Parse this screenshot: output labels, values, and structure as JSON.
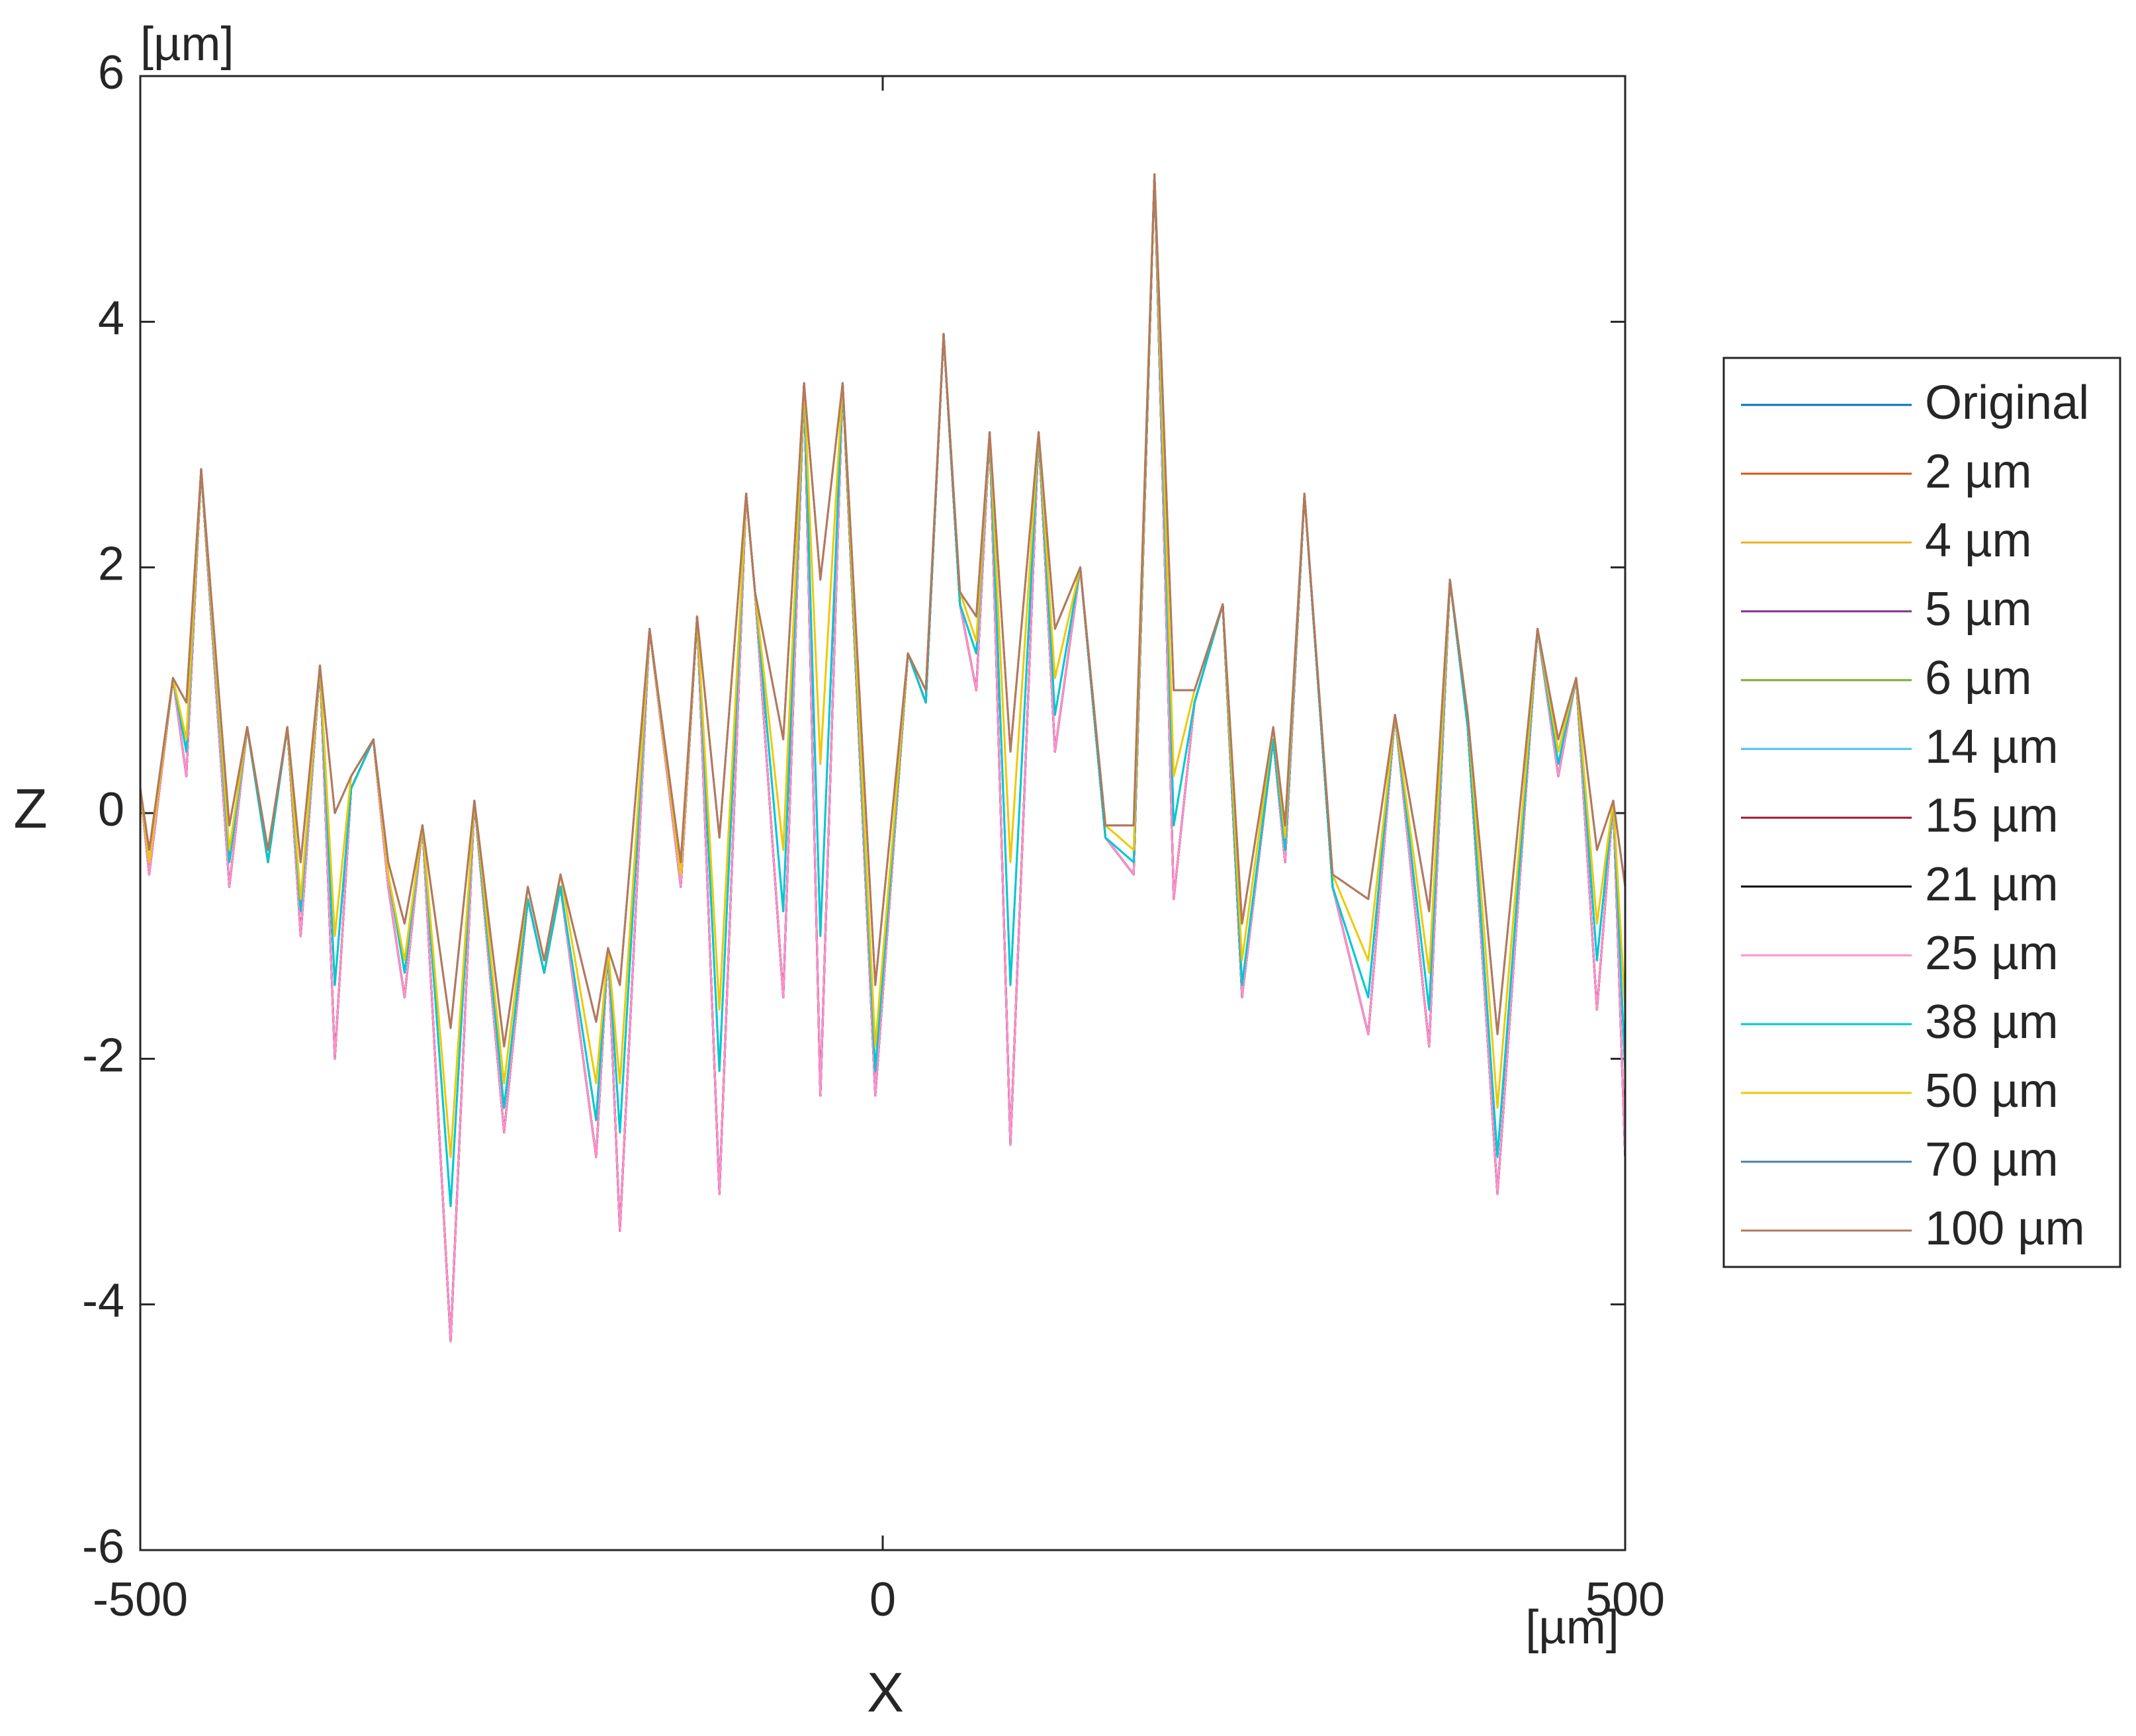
{
  "chart_data": {
    "type": "line",
    "xlabel": "X",
    "ylabel": "Z",
    "x_unit": "[µm]",
    "y_unit": "[µm]",
    "xlim": [
      -500,
      500
    ],
    "xticks": [
      -500,
      0,
      500
    ],
    "ylim": [
      -6,
      6
    ],
    "yticks": [
      -6,
      -4,
      -2,
      0,
      2,
      4,
      6
    ],
    "grid": false,
    "legend": "outside right",
    "x": [
      -500,
      -494,
      -478,
      -469,
      -459,
      -440,
      -428,
      -414,
      -401,
      -392,
      -379,
      -369,
      -358,
      -343,
      -333,
      -322,
      -310,
      -291,
      -275,
      -255,
      -239,
      -228,
      -217,
      -193,
      -185,
      -177,
      -157,
      -136,
      -125,
      -110,
      -92,
      -86,
      -67,
      -53,
      -42,
      -27,
      -5,
      17,
      29,
      41,
      52,
      63,
      72,
      86,
      105,
      116,
      133,
      150,
      169,
      183,
      196,
      210,
      229,
      242,
      263,
      271,
      284,
      303,
      327,
      345,
      368,
      382,
      394,
      414,
      441,
      455,
      467,
      481,
      492,
      500
    ],
    "series": [
      {
        "name": "Original",
        "color": "#0072bd",
        "values": [
          0.2,
          -0.5,
          1.1,
          0.3,
          2.8,
          -0.6,
          0.7,
          -0.4,
          0.7,
          -1.0,
          1.2,
          -2.0,
          0.2,
          0.6,
          -0.6,
          -1.5,
          -0.1,
          -4.3,
          0.1,
          -2.6,
          -0.7,
          -1.3,
          -0.6,
          -2.8,
          -1.1,
          -3.4,
          1.5,
          -0.6,
          1.6,
          -3.1,
          2.6,
          1.8,
          -1.5,
          3.5,
          -2.3,
          3.5,
          -2.3,
          1.3,
          0.9,
          3.9,
          1.7,
          1.0,
          3.1,
          -2.7,
          3.1,
          0.5,
          2.0,
          -0.2,
          -0.5,
          5.2,
          -0.7,
          0.9,
          1.7,
          -1.5,
          0.6,
          -0.4,
          2.6,
          -0.6,
          -1.8,
          0.8,
          -1.9,
          1.9,
          0.7,
          -3.1,
          1.5,
          0.3,
          1.1,
          -1.6,
          0.1,
          -2.8
        ]
      },
      {
        "name": "2 µm",
        "color": "#d95319",
        "values": [
          0.2,
          -0.5,
          1.1,
          0.3,
          2.8,
          -0.6,
          0.7,
          -0.4,
          0.7,
          -1.0,
          1.2,
          -2.0,
          0.2,
          0.6,
          -0.6,
          -1.5,
          -0.1,
          -4.3,
          0.1,
          -2.6,
          -0.7,
          -1.3,
          -0.6,
          -2.8,
          -1.1,
          -3.4,
          1.5,
          -0.6,
          1.6,
          -3.1,
          2.6,
          1.8,
          -1.5,
          3.5,
          -2.3,
          3.5,
          -2.3,
          1.3,
          0.9,
          3.9,
          1.7,
          1.0,
          3.1,
          -2.7,
          3.1,
          0.5,
          2.0,
          -0.2,
          -0.5,
          5.2,
          -0.7,
          0.9,
          1.7,
          -1.5,
          0.6,
          -0.4,
          2.6,
          -0.6,
          -1.8,
          0.8,
          -1.9,
          1.9,
          0.7,
          -3.1,
          1.5,
          0.3,
          1.1,
          -1.6,
          0.1,
          -2.8
        ]
      },
      {
        "name": "4 µm",
        "color": "#edb120",
        "values": [
          0.2,
          -0.5,
          1.1,
          0.3,
          2.8,
          -0.6,
          0.7,
          -0.4,
          0.7,
          -1.0,
          1.2,
          -2.0,
          0.2,
          0.6,
          -0.6,
          -1.5,
          -0.1,
          -4.3,
          0.1,
          -2.6,
          -0.7,
          -1.3,
          -0.6,
          -2.8,
          -1.1,
          -3.4,
          1.5,
          -0.6,
          1.6,
          -3.1,
          2.6,
          1.8,
          -1.5,
          3.5,
          -2.3,
          3.5,
          -2.3,
          1.3,
          0.9,
          3.9,
          1.7,
          1.0,
          3.1,
          -2.7,
          3.1,
          0.5,
          2.0,
          -0.2,
          -0.5,
          5.2,
          -0.7,
          0.9,
          1.7,
          -1.5,
          0.6,
          -0.4,
          2.6,
          -0.6,
          -1.8,
          0.8,
          -1.9,
          1.9,
          0.7,
          -3.1,
          1.5,
          0.3,
          1.1,
          -1.6,
          0.1,
          -2.8
        ]
      },
      {
        "name": "5 µm",
        "color": "#7e2f8e",
        "values": [
          0.2,
          -0.5,
          1.1,
          0.3,
          2.8,
          -0.6,
          0.7,
          -0.4,
          0.7,
          -1.0,
          1.2,
          -2.0,
          0.2,
          0.6,
          -0.6,
          -1.5,
          -0.1,
          -4.3,
          0.1,
          -2.6,
          -0.7,
          -1.3,
          -0.6,
          -2.8,
          -1.1,
          -3.4,
          1.5,
          -0.6,
          1.6,
          -3.1,
          2.6,
          1.8,
          -1.5,
          3.5,
          -2.3,
          3.5,
          -2.3,
          1.3,
          0.9,
          3.9,
          1.7,
          1.0,
          3.1,
          -2.7,
          3.1,
          0.5,
          2.0,
          -0.2,
          -0.5,
          5.2,
          -0.7,
          0.9,
          1.7,
          -1.5,
          0.6,
          -0.4,
          2.6,
          -0.6,
          -1.8,
          0.8,
          -1.9,
          1.9,
          0.7,
          -3.1,
          1.5,
          0.3,
          1.1,
          -1.6,
          0.1,
          -2.8
        ]
      },
      {
        "name": "6 µm",
        "color": "#77ac30",
        "values": [
          0.2,
          -0.5,
          1.1,
          0.3,
          2.8,
          -0.6,
          0.7,
          -0.4,
          0.7,
          -1.0,
          1.2,
          -2.0,
          0.2,
          0.6,
          -0.6,
          -1.5,
          -0.1,
          -4.3,
          0.1,
          -2.6,
          -0.7,
          -1.3,
          -0.6,
          -2.8,
          -1.1,
          -3.4,
          1.5,
          -0.6,
          1.6,
          -3.1,
          2.6,
          1.8,
          -1.5,
          3.5,
          -2.3,
          3.5,
          -2.3,
          1.3,
          0.9,
          3.9,
          1.7,
          1.0,
          3.1,
          -2.7,
          3.1,
          0.5,
          2.0,
          -0.2,
          -0.5,
          5.2,
          -0.7,
          0.9,
          1.7,
          -1.5,
          0.6,
          -0.4,
          2.6,
          -0.6,
          -1.8,
          0.8,
          -1.9,
          1.9,
          0.7,
          -3.1,
          1.5,
          0.3,
          1.1,
          -1.6,
          0.1,
          -2.8
        ]
      },
      {
        "name": "14 µm",
        "color": "#4dbeee",
        "values": [
          0.2,
          -0.4,
          1.1,
          0.5,
          2.8,
          -0.4,
          0.7,
          -0.4,
          0.7,
          -0.8,
          1.2,
          -1.4,
          0.2,
          0.6,
          -0.5,
          -1.3,
          -0.1,
          -3.2,
          0.1,
          -2.4,
          -0.7,
          -1.3,
          -0.6,
          -2.5,
          -1.1,
          -2.6,
          1.5,
          -0.5,
          1.6,
          -2.1,
          2.6,
          1.8,
          -0.8,
          3.5,
          -1.0,
          3.5,
          -2.1,
          1.3,
          0.9,
          3.9,
          1.7,
          1.3,
          3.1,
          -1.4,
          3.1,
          0.8,
          2.0,
          -0.2,
          -0.4,
          5.2,
          -0.1,
          0.9,
          1.7,
          -1.4,
          0.6,
          -0.3,
          2.6,
          -0.6,
          -1.5,
          0.8,
          -1.6,
          1.9,
          0.7,
          -2.8,
          1.5,
          0.4,
          1.1,
          -1.2,
          0.1,
          -2.1
        ]
      },
      {
        "name": "15 µm",
        "color": "#a2142f",
        "values": [
          0.2,
          -0.5,
          1.1,
          0.3,
          2.8,
          -0.6,
          0.7,
          -0.4,
          0.7,
          -1.0,
          1.2,
          -2.0,
          0.2,
          0.6,
          -0.6,
          -1.5,
          -0.1,
          -4.3,
          0.1,
          -2.6,
          -0.7,
          -1.3,
          -0.6,
          -2.8,
          -1.1,
          -3.4,
          1.5,
          -0.6,
          1.6,
          -3.1,
          2.6,
          1.8,
          -1.5,
          3.5,
          -2.3,
          3.5,
          -2.3,
          1.3,
          0.9,
          3.9,
          1.7,
          1.0,
          3.1,
          -2.7,
          3.1,
          0.5,
          2.0,
          -0.2,
          -0.5,
          5.2,
          -0.7,
          0.9,
          1.7,
          -1.5,
          0.6,
          -0.4,
          2.6,
          -0.6,
          -1.8,
          0.8,
          -1.9,
          1.9,
          0.7,
          -3.1,
          1.5,
          0.3,
          1.1,
          -1.6,
          0.1,
          -2.8
        ]
      },
      {
        "name": "21 µm",
        "color": "#000000",
        "values": [
          0.2,
          -0.5,
          1.1,
          0.3,
          2.8,
          -0.6,
          0.7,
          -0.4,
          0.7,
          -1.0,
          1.2,
          -2.0,
          0.2,
          0.6,
          -0.6,
          -1.5,
          -0.1,
          -4.3,
          0.1,
          -2.6,
          -0.7,
          -1.3,
          -0.6,
          -2.8,
          -1.1,
          -3.4,
          1.5,
          -0.6,
          1.6,
          -3.1,
          2.6,
          1.8,
          -1.5,
          3.5,
          -2.3,
          3.5,
          -2.3,
          1.3,
          0.9,
          3.9,
          1.7,
          1.0,
          3.1,
          -2.7,
          3.1,
          0.5,
          2.0,
          -0.2,
          -0.5,
          5.2,
          -0.7,
          0.9,
          1.7,
          -1.5,
          0.6,
          -0.4,
          2.6,
          -0.6,
          -1.8,
          0.8,
          -1.9,
          1.9,
          0.7,
          -3.1,
          1.5,
          0.3,
          1.1,
          -1.6,
          0.1,
          -2.8
        ]
      },
      {
        "name": "25 µm",
        "color": "#ff8fd0",
        "values": [
          0.2,
          -0.5,
          1.1,
          0.3,
          2.8,
          -0.6,
          0.7,
          -0.4,
          0.7,
          -1.0,
          1.2,
          -2.0,
          0.2,
          0.6,
          -0.6,
          -1.5,
          -0.1,
          -4.3,
          0.1,
          -2.6,
          -0.7,
          -1.3,
          -0.6,
          -2.8,
          -1.1,
          -3.4,
          1.5,
          -0.6,
          1.6,
          -3.1,
          2.6,
          1.8,
          -1.5,
          3.5,
          -2.3,
          3.5,
          -2.3,
          1.3,
          0.9,
          3.9,
          1.7,
          1.0,
          3.1,
          -2.7,
          3.1,
          0.5,
          2.0,
          -0.2,
          -0.5,
          5.2,
          -0.7,
          0.9,
          1.7,
          -1.5,
          0.6,
          -0.4,
          2.6,
          -0.6,
          -1.8,
          0.8,
          -1.9,
          1.9,
          0.7,
          -3.1,
          1.5,
          0.3,
          1.1,
          -1.6,
          0.1,
          -2.8
        ]
      },
      {
        "name": "38 µm",
        "color": "#00c8d0",
        "values": [
          0.2,
          -0.4,
          1.1,
          0.5,
          2.8,
          -0.4,
          0.7,
          -0.4,
          0.7,
          -0.8,
          1.2,
          -1.4,
          0.2,
          0.6,
          -0.5,
          -1.3,
          -0.1,
          -3.2,
          0.1,
          -2.4,
          -0.7,
          -1.3,
          -0.6,
          -2.5,
          -1.1,
          -2.6,
          1.5,
          -0.5,
          1.6,
          -2.1,
          2.6,
          1.8,
          -0.8,
          3.5,
          -1.0,
          3.5,
          -2.1,
          1.3,
          0.9,
          3.9,
          1.7,
          1.3,
          3.1,
          -1.4,
          3.1,
          0.8,
          2.0,
          -0.2,
          -0.4,
          5.2,
          -0.1,
          0.9,
          1.7,
          -1.4,
          0.6,
          -0.3,
          2.6,
          -0.6,
          -1.5,
          0.8,
          -1.6,
          1.9,
          0.7,
          -2.8,
          1.5,
          0.4,
          1.1,
          -1.2,
          0.1,
          -2.1
        ]
      },
      {
        "name": "50 µm",
        "color": "#f0c800",
        "values": [
          0.2,
          -0.4,
          1.1,
          0.6,
          2.8,
          -0.3,
          0.7,
          -0.3,
          0.7,
          -0.7,
          1.2,
          -1.0,
          0.3,
          0.6,
          -0.5,
          -1.2,
          -0.1,
          -2.8,
          0.1,
          -2.2,
          -0.6,
          -1.2,
          -0.5,
          -2.2,
          -1.1,
          -2.2,
          1.5,
          -0.5,
          1.6,
          -1.6,
          2.6,
          1.8,
          -0.3,
          3.5,
          0.4,
          3.5,
          -1.9,
          1.3,
          1.0,
          3.9,
          1.8,
          1.4,
          3.1,
          -0.4,
          3.1,
          1.1,
          2.0,
          -0.1,
          -0.3,
          5.2,
          0.3,
          1.0,
          1.7,
          -1.2,
          0.7,
          -0.2,
          2.6,
          -0.5,
          -1.2,
          0.8,
          -1.3,
          1.9,
          0.8,
          -2.4,
          1.5,
          0.5,
          1.1,
          -0.9,
          0.1,
          -1.6
        ]
      },
      {
        "name": "70 µm",
        "color": "#4a7fb0",
        "values": [
          0.2,
          -0.3,
          1.1,
          0.9,
          2.8,
          -0.1,
          0.7,
          -0.3,
          0.7,
          -0.4,
          1.2,
          0.0,
          0.3,
          0.6,
          -0.4,
          -0.9,
          -0.1,
          -1.75,
          0.1,
          -1.9,
          -0.6,
          -1.2,
          -0.5,
          -1.7,
          -1.1,
          -1.4,
          1.5,
          -0.4,
          1.6,
          -0.2,
          2.6,
          1.8,
          0.6,
          3.5,
          1.9,
          3.5,
          -1.4,
          1.3,
          1.0,
          3.9,
          1.8,
          1.6,
          3.1,
          0.5,
          3.1,
          1.5,
          2.0,
          -0.1,
          -0.1,
          5.2,
          1.0,
          1.0,
          1.7,
          -0.9,
          0.7,
          -0.1,
          2.6,
          -0.5,
          -0.7,
          0.8,
          -0.8,
          1.9,
          0.8,
          -1.8,
          1.5,
          0.6,
          1.1,
          -0.3,
          0.1,
          -0.6
        ]
      },
      {
        "name": "100 µm",
        "color": "#b5785a",
        "values": [
          0.2,
          -0.3,
          1.1,
          0.9,
          2.8,
          -0.1,
          0.7,
          -0.3,
          0.7,
          -0.4,
          1.2,
          0.0,
          0.3,
          0.6,
          -0.4,
          -0.9,
          -0.1,
          -1.75,
          0.1,
          -1.9,
          -0.6,
          -1.2,
          -0.5,
          -1.7,
          -1.1,
          -1.4,
          1.5,
          -0.4,
          1.6,
          -0.2,
          2.6,
          1.8,
          0.6,
          3.5,
          1.9,
          3.5,
          -1.4,
          1.3,
          1.0,
          3.9,
          1.8,
          1.6,
          3.1,
          0.5,
          3.1,
          1.5,
          2.0,
          -0.1,
          -0.1,
          5.2,
          1.0,
          1.0,
          1.7,
          -0.9,
          0.7,
          -0.1,
          2.6,
          -0.5,
          -0.7,
          0.8,
          -0.8,
          1.9,
          0.8,
          -1.8,
          1.5,
          0.6,
          1.1,
          -0.3,
          0.1,
          -0.6
        ]
      }
    ]
  }
}
